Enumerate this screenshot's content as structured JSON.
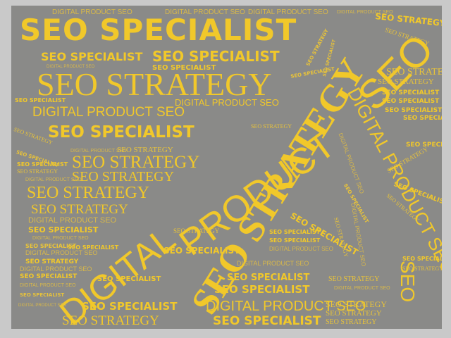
{
  "colors": {
    "background": "#8a8a88",
    "frame": "#c9c9c9",
    "word": "#f1c82a",
    "word_muted": "#d8b84a"
  },
  "words": {
    "seo_specialist": "SEO SPECIALIST",
    "seo_strategy": "SEO STRATEGY",
    "digital_product_seo": "DIGITAL PRODUCT SEO",
    "digital": "DIGITAL",
    "product": "PRODUCT",
    "seo": "SEO",
    "strategy": "STRATEGY"
  }
}
